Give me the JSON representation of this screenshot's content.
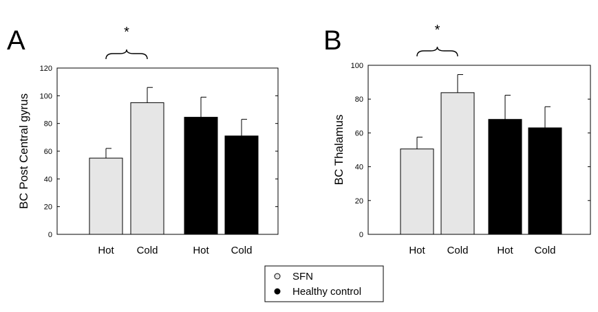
{
  "chart_data": [
    {
      "type": "bar",
      "panel_label": "A",
      "ylabel": "BC Post Central gyrus",
      "xlabel": "",
      "ylim": [
        0,
        120
      ],
      "yticks": [
        0,
        20,
        40,
        60,
        80,
        100,
        120
      ],
      "categories": [
        "Hot",
        "Cold",
        "Hot",
        "Cold"
      ],
      "groups": [
        "SFN",
        "SFN",
        "Healthy control",
        "Healthy control"
      ],
      "values": [
        55,
        95,
        84.5,
        71
      ],
      "errors": [
        7,
        11,
        14.5,
        12
      ],
      "significance": {
        "label": "*",
        "between": [
          0,
          1
        ]
      }
    },
    {
      "type": "bar",
      "panel_label": "B",
      "ylabel": "BC Thalamus",
      "xlabel": "",
      "ylim": [
        0,
        100
      ],
      "yticks": [
        0,
        20,
        40,
        60,
        80,
        100
      ],
      "categories": [
        "Hot",
        "Cold",
        "Hot",
        "Cold"
      ],
      "groups": [
        "SFN",
        "SFN",
        "Healthy control",
        "Healthy control"
      ],
      "values": [
        50.5,
        83.8,
        68,
        63
      ],
      "errors": [
        7,
        10.7,
        14.3,
        12.5
      ],
      "significance": {
        "label": "*",
        "between": [
          0,
          1
        ]
      }
    }
  ],
  "legend": {
    "items": [
      {
        "label": "SFN",
        "color": "#e6e6e6"
      },
      {
        "label": "Healthy control",
        "color": "#000000"
      }
    ]
  },
  "colors": {
    "SFN": "#e6e6e6",
    "Healthy control": "#000000"
  }
}
